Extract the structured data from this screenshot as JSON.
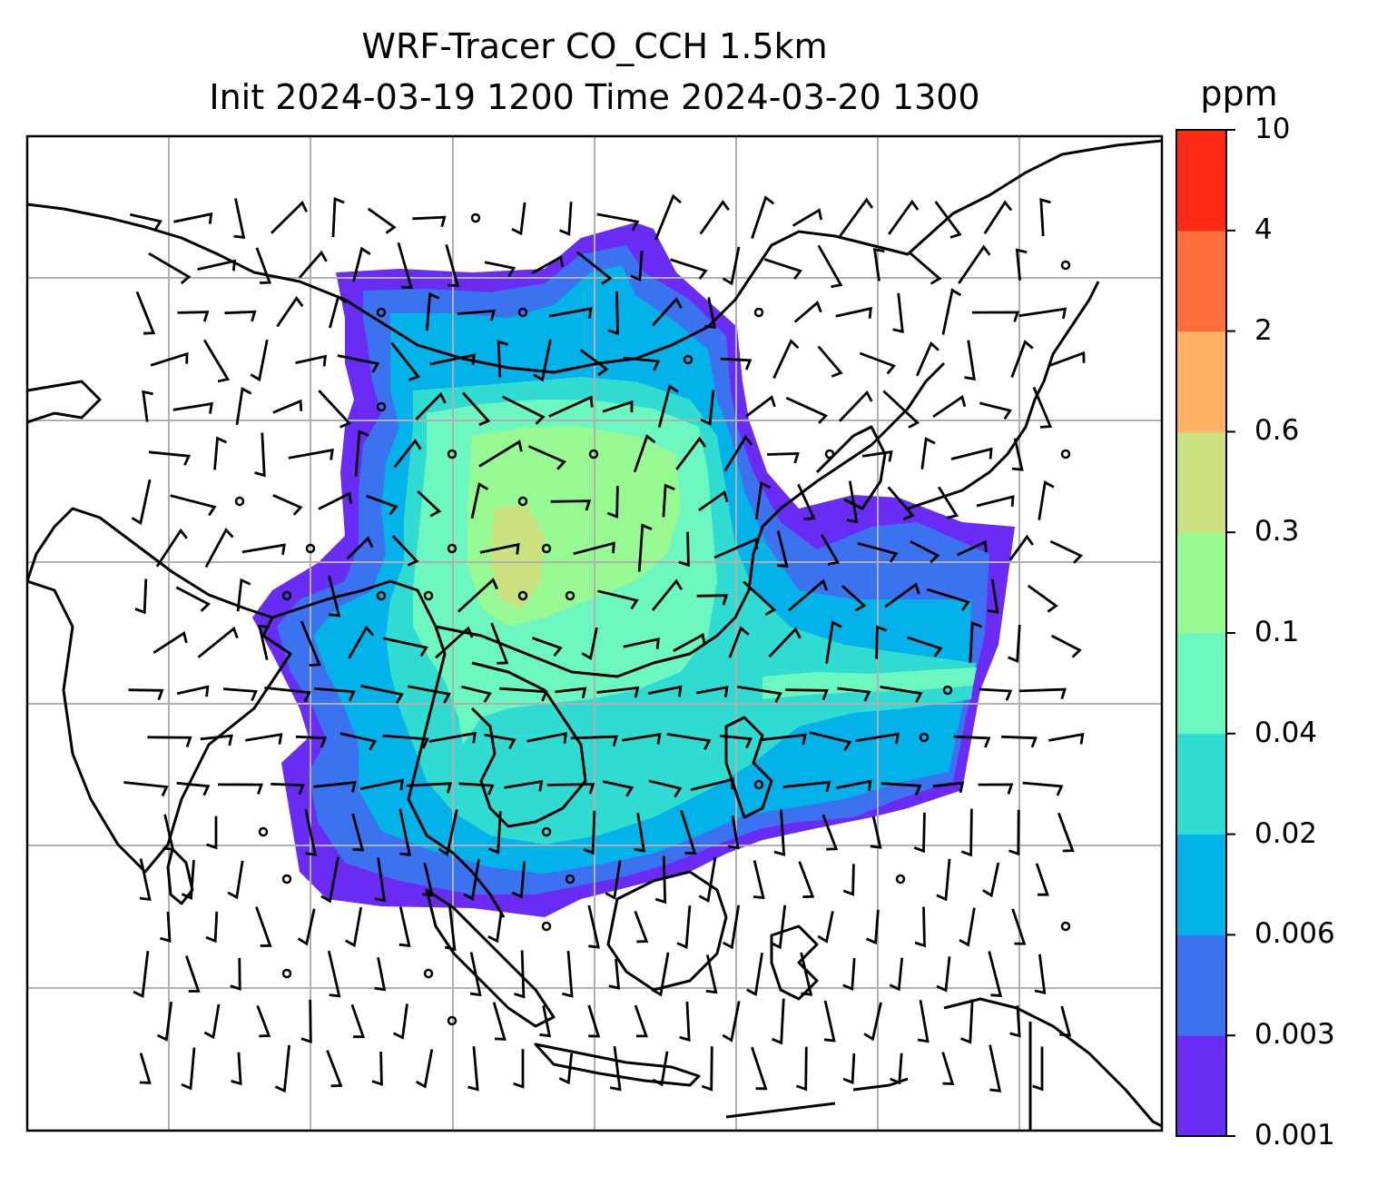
{
  "title": {
    "line1": "WRF-Tracer CO_CCH 1.5km",
    "line2": "Init 2024-03-19 1200 Time 2024-03-20 1300"
  },
  "colorbar": {
    "unit": "ppm",
    "levels": [
      "0.001",
      "0.003",
      "0.006",
      "0.02",
      "0.04",
      "0.1",
      "0.3",
      "0.6",
      "2",
      "4",
      "10"
    ],
    "colors": [
      "#6a2cf5",
      "#3a72f0",
      "#03b2e8",
      "#30dcd2",
      "#6df7c0",
      "#96f992",
      "#cde080",
      "#ffb060",
      "#ff6e3c",
      "#ff2a14"
    ]
  },
  "style": {
    "grid_color": "#b0b0b0",
    "coast_color": "#000000"
  }
}
